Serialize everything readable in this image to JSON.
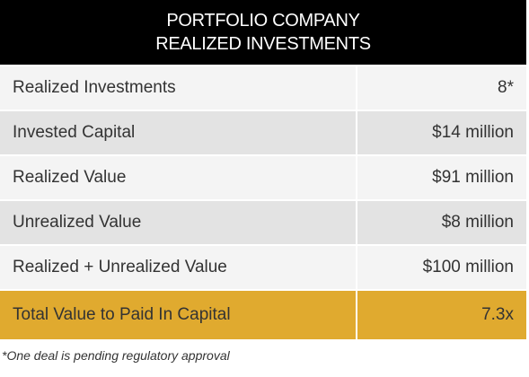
{
  "header": {
    "title_lines": [
      "PORTFOLIO COMPANY",
      "REALIZED INVESTMENTS"
    ]
  },
  "table": {
    "rows": [
      [
        "Realized Investments",
        "8*"
      ],
      [
        "Invested Capital",
        "$14 million"
      ],
      [
        "Realized Value",
        "$91 million"
      ],
      [
        "Unrealized Value",
        "$8 million"
      ],
      [
        "Realized + Unrealized Value",
        "$100 million"
      ],
      [
        "Total Value to Paid In Capital",
        "7.3x"
      ]
    ]
  },
  "footnote": "*One deal is pending regulatory approval"
}
